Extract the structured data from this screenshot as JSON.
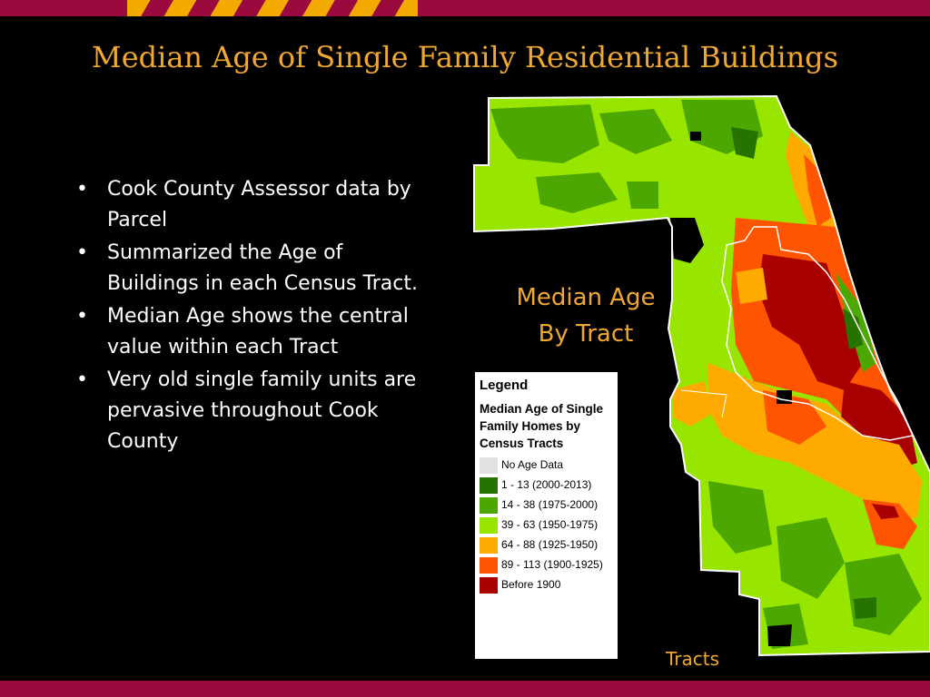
{
  "title": "Median Age of Single Family Residential Buildings",
  "bullets": [
    "Cook County Assessor data by Parcel",
    "Summarized the Age of Buildings in each Census Tract.",
    "Median Age shows the central value within each Tract",
    "Very old single family units are pervasive throughout Cook County"
  ],
  "map_caption": {
    "line1": "Median Age",
    "line2": "By Tract"
  },
  "legend": {
    "title": "Legend",
    "subtitle": "Median Age of Single Family Homes by Census Tracts",
    "items": [
      {
        "label": "No Age Data",
        "color": "#e1e1e1"
      },
      {
        "label": "1 - 13 (2000-2013)",
        "color": "#267300"
      },
      {
        "label": "14 - 38 (1975-2000)",
        "color": "#4ca700"
      },
      {
        "label": "39 - 63 (1950-1975)",
        "color": "#98e600"
      },
      {
        "label": "64 - 88 (1925-1950)",
        "color": "#ffaa00"
      },
      {
        "label": "89 - 113 (1900-1925)",
        "color": "#ff5500"
      },
      {
        "label": "Before 1900",
        "color": "#a80000"
      }
    ]
  },
  "tracts_label": "Tracts",
  "colors": {
    "accent_gold": "#f0a830",
    "band_maroon": "#9a0a3e",
    "stripe_gold": "#f2a900"
  }
}
